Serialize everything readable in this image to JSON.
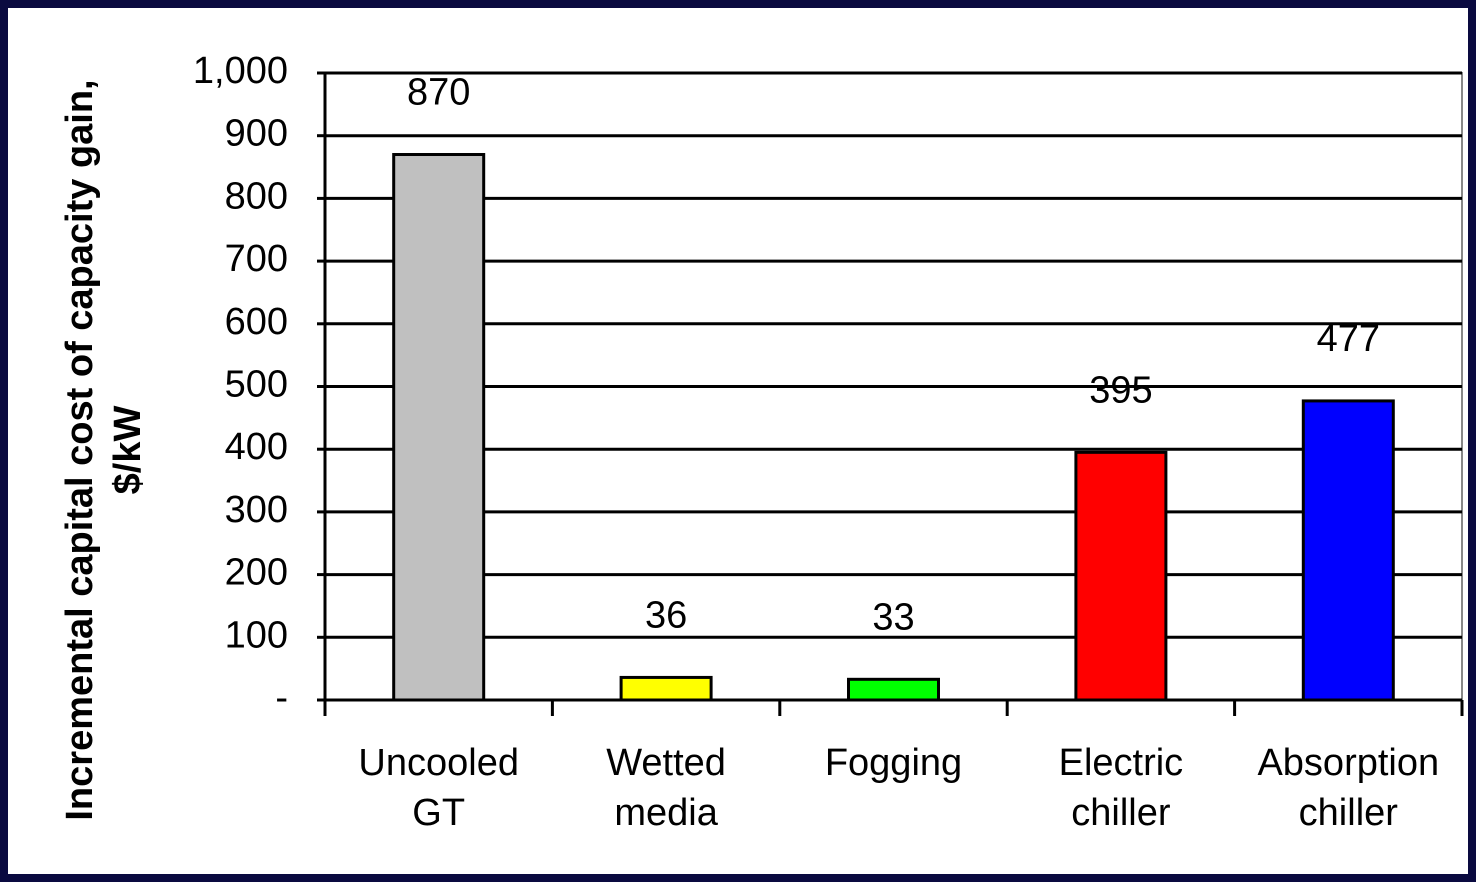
{
  "chart_data": {
    "type": "bar",
    "ylabel": [
      "Incremental capital cost of capacity gain,",
      "$/kW"
    ],
    "categories": [
      "Uncooled GT",
      "Wetted media",
      "Fogging",
      "Electric chiller",
      "Absorption chiller"
    ],
    "values": [
      870,
      36,
      33,
      395,
      477
    ],
    "colors": [
      "#c0c0c0",
      "#ffff00",
      "#00ff00",
      "#ff0000",
      "#0000ff"
    ],
    "ylim": [
      0,
      1000
    ],
    "yticks": [
      {
        "value": 0,
        "label": "-"
      },
      100,
      200,
      300,
      400,
      500,
      600,
      700,
      800,
      900,
      {
        "value": 1000,
        "label": "1,000"
      }
    ],
    "grid": true
  }
}
